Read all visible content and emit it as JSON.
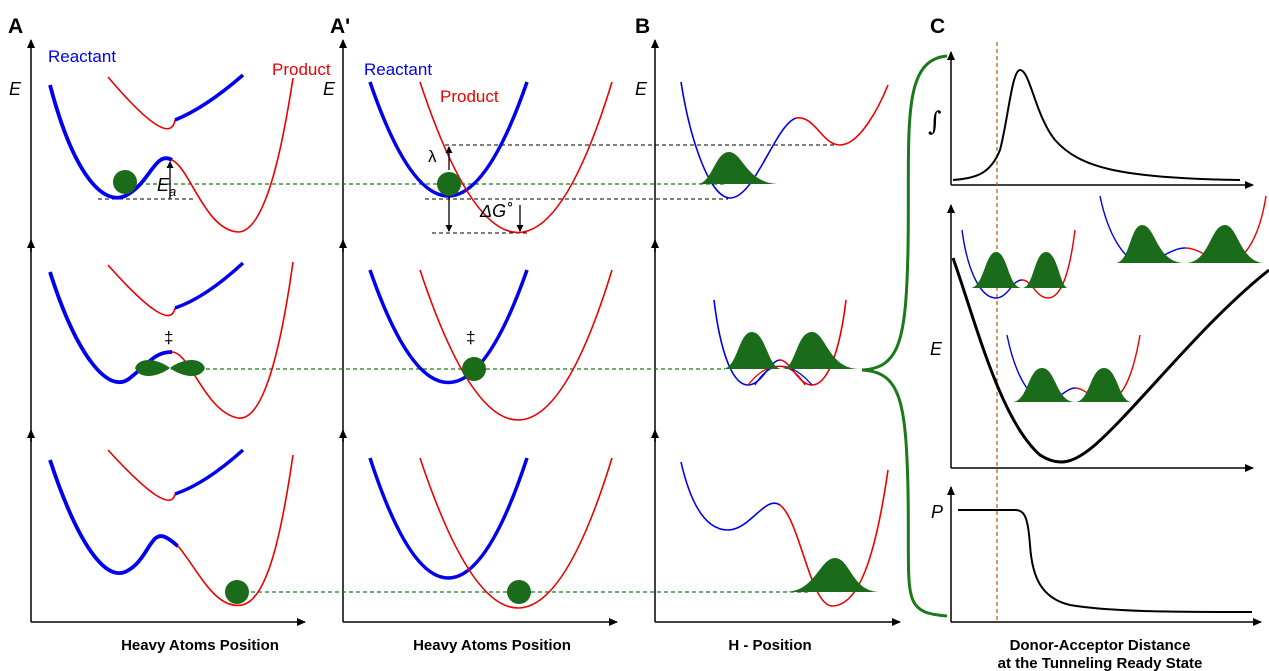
{
  "panels": {
    "A": "A",
    "A_prime": "A'",
    "B": "B",
    "C": "C"
  },
  "axis_labels": {
    "heavy_atoms_A": "Heavy Atoms Position",
    "heavy_atoms_A_prime": "Heavy Atoms Position",
    "h_position": "H - Position",
    "dad_line1": "Donor-Acceptor Distance",
    "dad_line2": "at the Tunneling Ready State"
  },
  "curve_labels": {
    "reactant_A": "Reactant",
    "product_A": "Product",
    "reactant_A_prime": "Reactant",
    "product_A_prime": "Product"
  },
  "symbols": {
    "energy": "E",
    "activation_energy_base": "E",
    "activation_energy_sub": "a",
    "reorganization": "λ",
    "free_energy": "ΔG˚",
    "transition_state": "‡",
    "transition_state_2": "‡",
    "integral": "∫",
    "probability": "P"
  },
  "colors": {
    "reactant": "#0000ee",
    "product": "#ee0000",
    "wavefunction": "#1a6b1a",
    "guide": "#1a7a1a",
    "tunneling_marker": "#b05a10",
    "axis": "#000000"
  }
}
